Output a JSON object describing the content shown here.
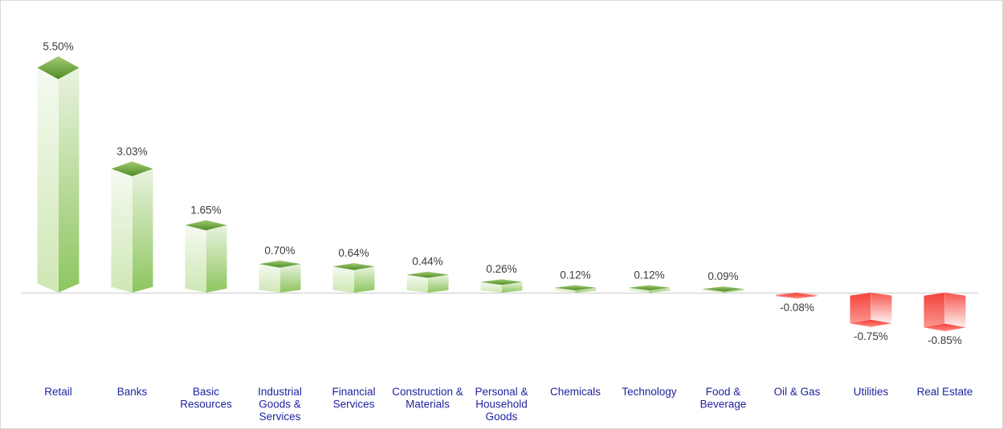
{
  "chart": {
    "name": "sector-performance-3d-bar-chart"
  },
  "chart_data": {
    "type": "bar",
    "style": "3d-column",
    "title": "",
    "xlabel": "",
    "ylabel": "",
    "grid": false,
    "legend": false,
    "ylim": [
      -1.0,
      6.0
    ],
    "baseline": 0,
    "categories": [
      "Retail",
      "Banks",
      "Basic Resources",
      "Industrial Goods & Services",
      "Financial Services",
      "Construction & Materials",
      "Personal & Household Goods",
      "Chemicals",
      "Technology",
      "Food & Beverage",
      "Oil & Gas",
      "Utilities",
      "Real Estate"
    ],
    "values": [
      5.5,
      3.03,
      1.65,
      0.7,
      0.64,
      0.44,
      0.26,
      0.12,
      0.12,
      0.09,
      -0.08,
      -0.75,
      -0.85
    ],
    "value_labels": [
      "5.50%",
      "3.03%",
      "1.65%",
      "0.70%",
      "0.64%",
      "0.44%",
      "0.26%",
      "0.12%",
      "0.12%",
      "0.09%",
      "-0.08%",
      "-0.75%",
      "-0.85%"
    ],
    "colors": {
      "positive_face_light_top": "#f5faf1",
      "positive_face_light_bottom": "#cfe7b4",
      "positive_face_dark_top": "#e9f3de",
      "positive_face_dark_bottom": "#8dc55e",
      "positive_top_diamond_start": "#a3cb73",
      "positive_top_diamond_end": "#4e8c26",
      "negative_face_dark_top": "#f4423b",
      "negative_face_dark_bottom": "#fa968f",
      "negative_face_light_top": "#f7554e",
      "negative_face_light_bottom": "#fdf2f1",
      "negative_bottom_diamond_start": "#f43b33",
      "negative_bottom_diamond_end": "#fd8d86",
      "value_label": "#3b3b3b",
      "category_label": "#2023a0",
      "axis_line": "#d9d9d9"
    }
  }
}
